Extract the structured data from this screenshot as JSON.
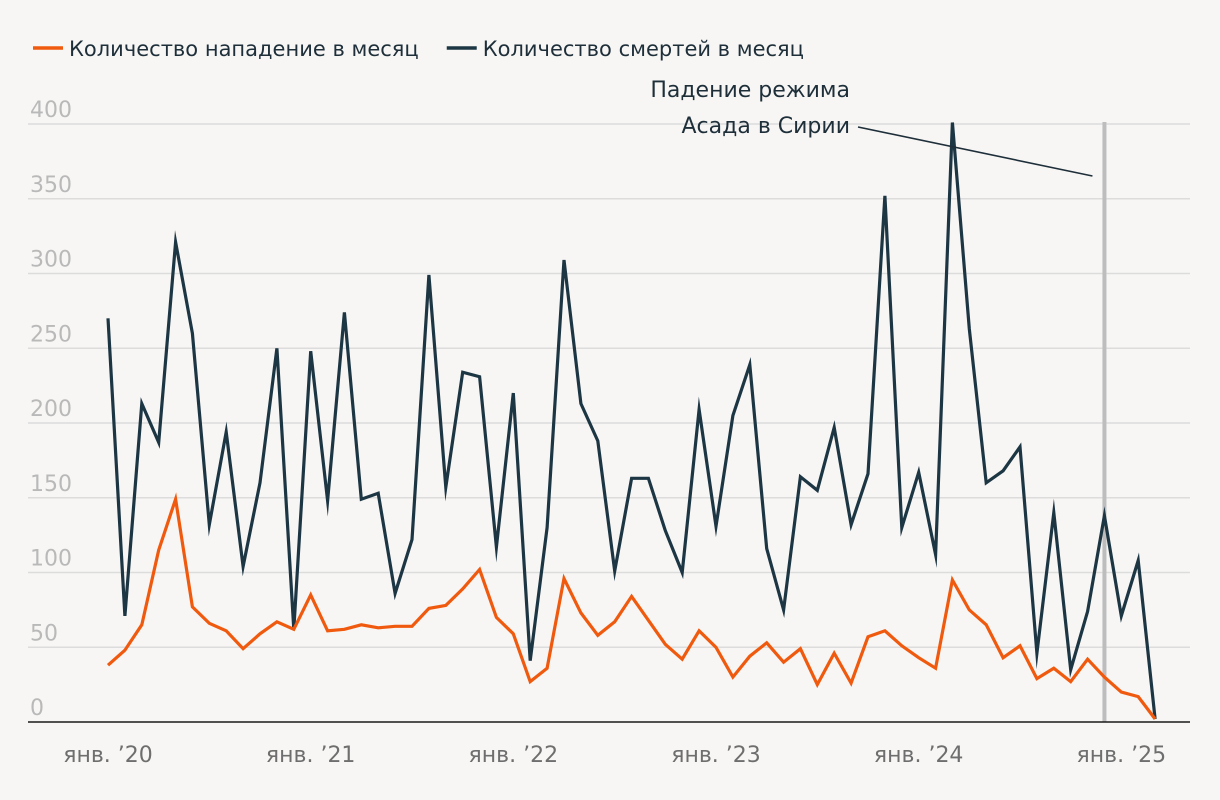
{
  "chart_data": {
    "type": "line",
    "title": "",
    "xlabel": "",
    "ylabel": "",
    "ylim": [
      0,
      400
    ],
    "yticks": [
      0,
      50,
      100,
      150,
      200,
      250,
      300,
      350,
      400
    ],
    "grid": true,
    "legend_position": "top-left",
    "x_tick_labels": [
      "янв. ’20",
      "янв. ’21",
      "янв. ’22",
      "янв. ’23",
      "янв. ’24",
      "янв. ’25"
    ],
    "x_start": "2020-01",
    "x_end": "2025-04",
    "series": [
      {
        "name": "Количество нападение в месяц",
        "color": "#f05a0f",
        "values": [
          38,
          48,
          65,
          115,
          149,
          77,
          66,
          61,
          49,
          59,
          67,
          62,
          85,
          61,
          62,
          65,
          63,
          64,
          64,
          76,
          78,
          89,
          102,
          70,
          59,
          27,
          36,
          96,
          73,
          58,
          67,
          84,
          68,
          52,
          42,
          61,
          50,
          30,
          44,
          53,
          40,
          49,
          25,
          46,
          26,
          57,
          61,
          51,
          43,
          36,
          95,
          75,
          65,
          43,
          51,
          29,
          36,
          27,
          42,
          30,
          20,
          17,
          2
        ]
      },
      {
        "name": "Количество смертей в месяц",
        "color": "#1d3644",
        "values": [
          270,
          71,
          213,
          187,
          321,
          260,
          132,
          194,
          104,
          160,
          250,
          62,
          248,
          148,
          274,
          149,
          153,
          86,
          122,
          299,
          157,
          234,
          231,
          117,
          220,
          41,
          130,
          309,
          213,
          188,
          101,
          163,
          163,
          128,
          100,
          209,
          131,
          205,
          239,
          116,
          75,
          164,
          155,
          197,
          132,
          166,
          352,
          130,
          167,
          112,
          401,
          263,
          160,
          168,
          184,
          46,
          140,
          35,
          74,
          138,
          71,
          108,
          2
        ]
      }
    ],
    "annotation": {
      "lines": [
        "Падение режима",
        "Асада в Сирии"
      ],
      "marker_value": "2024-12"
    }
  }
}
